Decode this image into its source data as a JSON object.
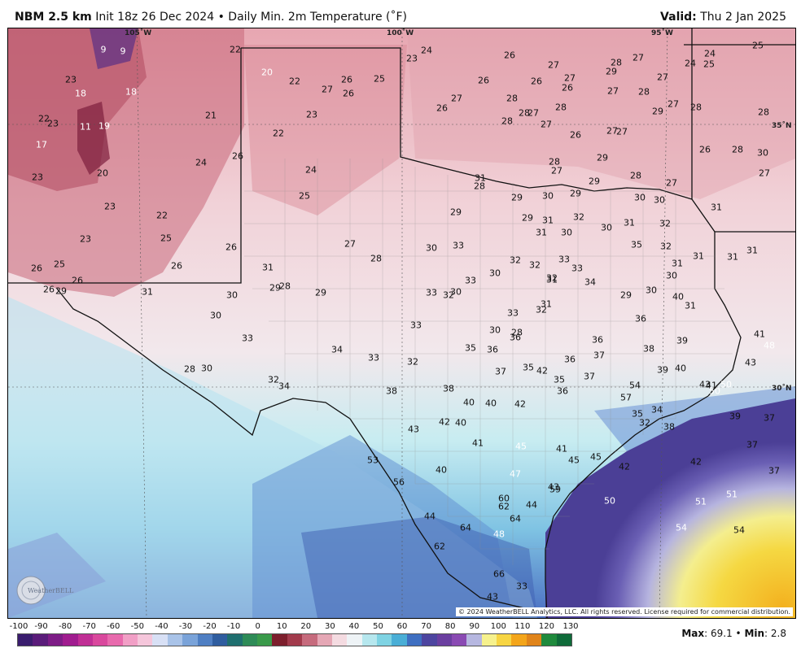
{
  "header": {
    "model": "NBM 2.5 km",
    "init": "Init 18z 26 Dec 2024",
    "separator": "•",
    "product": "Daily Min. 2m Temperature (˚F)",
    "valid_label": "Valid:",
    "valid_date": "Thu 2 Jan 2025"
  },
  "grid_labels": {
    "lon_105": "105˚W",
    "lon_100": "100˚W",
    "lon_95": "95˚W",
    "lat_35": "35˚N",
    "lat_30": "30˚N"
  },
  "copyright": "© 2024 WeatherBELL Analytics, LLC. All rights reserved. License required for commercial distribution.",
  "logo_text": "WeatherBELL",
  "stats": {
    "max_label": "Max",
    "max_value": "69.1",
    "sep": "•",
    "min_label": "Min",
    "min_value": "2.8"
  },
  "colorbar": {
    "ticks": [
      "-100",
      "-90",
      "-80",
      "-70",
      "-60",
      "-50",
      "-40",
      "-30",
      "-20",
      "-10",
      "0",
      "10",
      "20",
      "30",
      "40",
      "50",
      "60",
      "70",
      "80",
      "90",
      "100",
      "110",
      "120",
      "130"
    ],
    "colors": [
      "#3a1d6e",
      "#5a1c7a",
      "#7d1c86",
      "#a01c8f",
      "#c02f95",
      "#d9489d",
      "#e86aad",
      "#f19fc6",
      "#f5c6db",
      "#d8e0f5",
      "#a9c3e8",
      "#7aa3d9",
      "#4f7fc3",
      "#2f5d9f",
      "#1f6f6f",
      "#2e8b57",
      "#3a9a4a",
      "#7d1f2d",
      "#a23b4c",
      "#c66b7d",
      "#e5a7b5",
      "#f4dbe1",
      "#eef3f6",
      "#b6e7ee",
      "#7fd3e3",
      "#4aaed6",
      "#3f6fc1",
      "#4d45a0",
      "#6b3fa0",
      "#8a4ab3",
      "#b6b7e0",
      "#f6f18d",
      "#f7d543",
      "#f3a51a",
      "#e0841a",
      "#1f8a3d",
      "#0f6b3a"
    ],
    "series_units": "°F"
  },
  "temps": [
    [
      "9",
      "light"
    ],
    [
      "9",
      "light"
    ],
    [
      "23",
      ""
    ],
    [
      "18",
      "light"
    ],
    [
      "18",
      "light"
    ],
    [
      "22",
      ""
    ],
    [
      "23",
      ""
    ],
    [
      "11",
      "light"
    ],
    [
      "19",
      "light"
    ],
    [
      "17",
      "light"
    ],
    [
      "23",
      ""
    ],
    [
      "20",
      ""
    ],
    [
      "21",
      ""
    ],
    [
      "22",
      ""
    ],
    [
      "20",
      "light"
    ],
    [
      "22",
      ""
    ],
    [
      "27",
      ""
    ],
    [
      "26",
      ""
    ],
    [
      "26",
      ""
    ],
    [
      "25",
      ""
    ],
    [
      "22",
      ""
    ],
    [
      "23",
      ""
    ],
    [
      "24",
      ""
    ],
    [
      "26",
      ""
    ],
    [
      "24",
      ""
    ],
    [
      "25",
      ""
    ],
    [
      "23",
      ""
    ],
    [
      "22",
      ""
    ],
    [
      "25",
      ""
    ],
    [
      "23",
      ""
    ],
    [
      "26",
      ""
    ],
    [
      "26",
      ""
    ],
    [
      "26",
      ""
    ],
    [
      "25",
      ""
    ],
    [
      "26",
      ""
    ],
    [
      "26",
      ""
    ],
    [
      "29",
      ""
    ],
    [
      "31",
      ""
    ],
    [
      "30",
      ""
    ],
    [
      "31",
      ""
    ],
    [
      "29",
      ""
    ],
    [
      "28",
      ""
    ],
    [
      "30",
      ""
    ],
    [
      "29",
      ""
    ],
    [
      "27",
      ""
    ],
    [
      "28",
      ""
    ],
    [
      "33",
      ""
    ],
    [
      "28",
      ""
    ],
    [
      "30",
      ""
    ],
    [
      "32",
      ""
    ],
    [
      "34",
      ""
    ],
    [
      "23",
      ""
    ],
    [
      "24",
      ""
    ],
    [
      "26",
      ""
    ],
    [
      "27",
      ""
    ],
    [
      "26",
      ""
    ],
    [
      "27",
      ""
    ],
    [
      "26",
      ""
    ],
    [
      "29",
      ""
    ],
    [
      "28",
      ""
    ],
    [
      "27",
      ""
    ],
    [
      "27",
      ""
    ],
    [
      "26",
      ""
    ],
    [
      "27",
      ""
    ],
    [
      "28",
      ""
    ],
    [
      "28",
      ""
    ],
    [
      "28",
      ""
    ],
    [
      "27",
      ""
    ],
    [
      "27",
      ""
    ],
    [
      "28",
      ""
    ],
    [
      "26",
      ""
    ],
    [
      "26",
      ""
    ],
    [
      "27",
      ""
    ],
    [
      "27",
      ""
    ],
    [
      "29",
      ""
    ],
    [
      "28",
      ""
    ],
    [
      "27",
      ""
    ],
    [
      "27",
      ""
    ],
    [
      "28",
      ""
    ],
    [
      "24",
      ""
    ],
    [
      "25",
      ""
    ],
    [
      "24",
      ""
    ],
    [
      "25",
      ""
    ],
    [
      "28",
      ""
    ],
    [
      "26",
      ""
    ],
    [
      "28",
      ""
    ],
    [
      "30",
      ""
    ],
    [
      "27",
      ""
    ],
    [
      "27",
      ""
    ],
    [
      "28",
      ""
    ],
    [
      "29",
      ""
    ],
    [
      "28",
      ""
    ],
    [
      "27",
      ""
    ],
    [
      "29",
      ""
    ],
    [
      "30",
      ""
    ],
    [
      "29",
      ""
    ],
    [
      "31",
      ""
    ],
    [
      "28",
      ""
    ],
    [
      "29",
      ""
    ],
    [
      "30",
      ""
    ],
    [
      "30",
      ""
    ],
    [
      "31",
      ""
    ],
    [
      "29",
      ""
    ],
    [
      "29",
      ""
    ],
    [
      "31",
      ""
    ],
    [
      "32",
      ""
    ],
    [
      "31",
      ""
    ],
    [
      "30",
      ""
    ],
    [
      "30",
      ""
    ],
    [
      "31",
      ""
    ],
    [
      "32",
      ""
    ],
    [
      "35",
      ""
    ],
    [
      "32",
      ""
    ],
    [
      "31",
      ""
    ],
    [
      "31",
      ""
    ],
    [
      "31",
      ""
    ],
    [
      "31",
      ""
    ],
    [
      "33",
      ""
    ],
    [
      "30",
      ""
    ],
    [
      "30",
      ""
    ],
    [
      "30",
      ""
    ],
    [
      "32",
      ""
    ],
    [
      "32",
      ""
    ],
    [
      "33",
      ""
    ],
    [
      "33",
      ""
    ],
    [
      "34",
      ""
    ],
    [
      "32",
      ""
    ],
    [
      "32",
      ""
    ],
    [
      "31",
      ""
    ],
    [
      "33",
      ""
    ],
    [
      "28",
      ""
    ],
    [
      "30",
      ""
    ],
    [
      "31",
      ""
    ],
    [
      "30",
      ""
    ],
    [
      "31",
      ""
    ],
    [
      "29",
      ""
    ],
    [
      "30",
      ""
    ],
    [
      "33",
      ""
    ],
    [
      "33",
      ""
    ],
    [
      "32",
      ""
    ],
    [
      "33",
      ""
    ],
    [
      "32",
      ""
    ],
    [
      "33",
      ""
    ],
    [
      "34",
      ""
    ],
    [
      "35",
      ""
    ],
    [
      "36",
      ""
    ],
    [
      "37",
      ""
    ],
    [
      "36",
      ""
    ],
    [
      "35",
      ""
    ],
    [
      "36",
      ""
    ],
    [
      "36",
      ""
    ],
    [
      "36",
      ""
    ],
    [
      "36",
      ""
    ],
    [
      "37",
      ""
    ],
    [
      "35",
      ""
    ],
    [
      "37",
      ""
    ],
    [
      "38",
      ""
    ],
    [
      "39",
      ""
    ],
    [
      "40",
      ""
    ],
    [
      "39",
      ""
    ],
    [
      "40",
      ""
    ],
    [
      "41",
      ""
    ],
    [
      "43",
      ""
    ],
    [
      "41",
      ""
    ],
    [
      "43",
      ""
    ],
    [
      "48",
      "light"
    ],
    [
      "50",
      "light"
    ],
    [
      "50",
      "light"
    ],
    [
      "54",
      ""
    ],
    [
      "57",
      ""
    ],
    [
      "35",
      ""
    ],
    [
      "32",
      ""
    ],
    [
      "34",
      ""
    ],
    [
      "38",
      ""
    ],
    [
      "39",
      ""
    ],
    [
      "37",
      ""
    ],
    [
      "37",
      ""
    ],
    [
      "37",
      ""
    ],
    [
      "38",
      ""
    ],
    [
      "38",
      ""
    ],
    [
      "40",
      ""
    ],
    [
      "40",
      ""
    ],
    [
      "42",
      ""
    ],
    [
      "43",
      ""
    ],
    [
      "42",
      ""
    ],
    [
      "40",
      ""
    ],
    [
      "41",
      ""
    ],
    [
      "42",
      ""
    ],
    [
      "53",
      ""
    ],
    [
      "56",
      ""
    ],
    [
      "40",
      ""
    ],
    [
      "47",
      "light"
    ],
    [
      "45",
      "light"
    ],
    [
      "41",
      ""
    ],
    [
      "45",
      ""
    ],
    [
      "42",
      ""
    ],
    [
      "42",
      ""
    ],
    [
      "45",
      ""
    ],
    [
      "43",
      ""
    ],
    [
      "44",
      ""
    ],
    [
      "59",
      ""
    ],
    [
      "60",
      ""
    ],
    [
      "62",
      ""
    ],
    [
      "64",
      ""
    ],
    [
      "64",
      ""
    ],
    [
      "44",
      ""
    ],
    [
      "48",
      "light"
    ],
    [
      "50",
      "light"
    ],
    [
      "51",
      "light"
    ],
    [
      "51",
      "light"
    ],
    [
      "54",
      "light"
    ],
    [
      "54",
      ""
    ],
    [
      "62",
      ""
    ],
    [
      "66",
      ""
    ],
    [
      "33",
      ""
    ],
    [
      "43",
      ""
    ]
  ]
}
